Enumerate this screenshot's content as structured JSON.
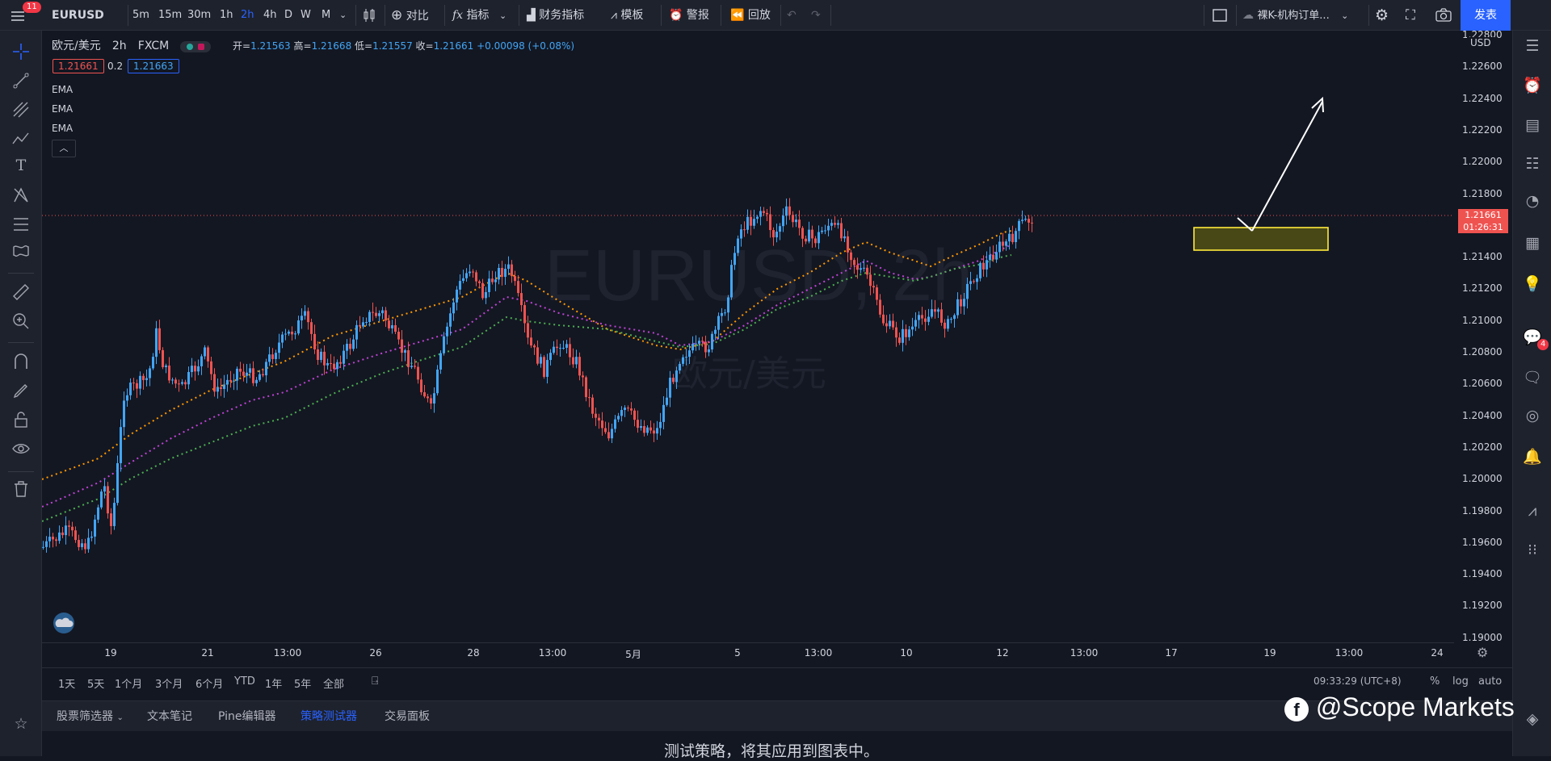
{
  "toolbar": {
    "notification_count": "11",
    "symbol": "EURUSD",
    "intervals": [
      "5m",
      "15m",
      "30m",
      "1h",
      "2h",
      "4h",
      "D",
      "W",
      "M"
    ],
    "active_interval": "2h",
    "compare_label": "对比",
    "indicators_label": "指标",
    "financials_label": "财务指标",
    "templates_label": "模板",
    "alert_label": "警报",
    "replay_label": "回放",
    "layout_name": "裸K-机构订单...",
    "publish_label": "发表"
  },
  "legend": {
    "title": "欧元/美元",
    "interval": "2h",
    "exchange": "FXCM",
    "open_label": "开=",
    "open": "1.21563",
    "high_label": "高=",
    "high": "1.21668",
    "low_label": "低=",
    "low": "1.21557",
    "close_label": "收=",
    "close": "1.21661",
    "change": "+0.00098 (+0.08%)",
    "bid": "1.21661",
    "spread": "0.2",
    "ask": "1.21663",
    "indicators": [
      "EMA",
      "EMA",
      "EMA"
    ]
  },
  "watermark": {
    "symbol": "EURUSD, 2h",
    "name": "欧元/美元"
  },
  "price_axis": {
    "currency": "USD",
    "ticks": [
      "1.22800",
      "1.22600",
      "1.22400",
      "1.22200",
      "1.22000",
      "1.21800",
      "1.21400",
      "1.21200",
      "1.21000",
      "1.20800",
      "1.20600",
      "1.20400",
      "1.20200",
      "1.20000",
      "1.19800",
      "1.19600",
      "1.19400",
      "1.19200",
      "1.19000"
    ],
    "last_price": "1.21661",
    "countdown": "01:26:31"
  },
  "time_axis": {
    "ticks": [
      "19",
      "21",
      "13:00",
      "26",
      "28",
      "13:00",
      "5月",
      "5",
      "13:00",
      "10",
      "12",
      "13:00",
      "17",
      "19",
      "13:00",
      "24"
    ]
  },
  "bottom": {
    "ranges": [
      "1天",
      "5天",
      "1个月",
      "3个月",
      "6个月",
      "YTD",
      "1年",
      "5年",
      "全部"
    ],
    "clock": "09:33:29 (UTC+8)",
    "percent": "%",
    "log": "log",
    "auto": "auto"
  },
  "tabs": [
    "股票筛选器",
    "文本笔记",
    "Pine编辑器",
    "策略测试器",
    "交易面板"
  ],
  "active_tab": "策略测试器",
  "panel_message": "测试策略，将其应用到图表中。",
  "right_badge": "4",
  "brand": "@Scope Markets",
  "colors": {
    "accent": "#2962ff",
    "up": "#42a5f5",
    "down": "#ef5350",
    "ema1": "#ff9800",
    "ema2": "#c043d6",
    "ema3": "#4caf50"
  }
}
